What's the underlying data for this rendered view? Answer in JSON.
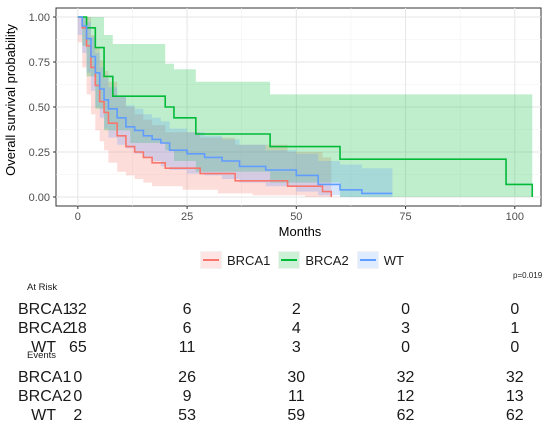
{
  "chart_data": {
    "type": "line",
    "ylabel": "Overall survival probability",
    "xlabel": "Months",
    "xlim": [
      -5,
      106
    ],
    "ylim": [
      -0.05,
      1.05
    ],
    "x_ticks": [
      0,
      25,
      50,
      75,
      100
    ],
    "y_ticks": [
      0.0,
      0.25,
      0.5,
      0.75,
      1.0
    ],
    "x_tick_labels": [
      "0",
      "25",
      "50",
      "75",
      "100"
    ],
    "y_tick_labels": [
      "0.00",
      "0.25",
      "0.50",
      "0.75",
      "1.00"
    ],
    "grid": true,
    "legend_position": "bottom",
    "series": [
      {
        "name": "BRCA1",
        "color": "#F8766D",
        "x": [
          0,
          1,
          2,
          3,
          4,
          5,
          6,
          7,
          9,
          11,
          13,
          15,
          17,
          20,
          24,
          28,
          32,
          36,
          40,
          48,
          52,
          56,
          58
        ],
        "y": [
          1.0,
          0.94,
          0.84,
          0.72,
          0.62,
          0.53,
          0.47,
          0.41,
          0.34,
          0.28,
          0.25,
          0.22,
          0.19,
          0.16,
          0.16,
          0.13,
          0.13,
          0.09,
          0.09,
          0.06,
          0.06,
          0.03,
          0.0
        ],
        "ci_lower": [
          1.0,
          0.86,
          0.72,
          0.57,
          0.46,
          0.37,
          0.31,
          0.26,
          0.19,
          0.14,
          0.12,
          0.1,
          0.08,
          0.06,
          0.06,
          0.04,
          0.04,
          0.02,
          0.02,
          0.01,
          0.01,
          0.0,
          0.0
        ],
        "ci_upper": [
          1.0,
          1.0,
          1.0,
          0.9,
          0.83,
          0.76,
          0.7,
          0.64,
          0.56,
          0.5,
          0.46,
          0.43,
          0.4,
          0.36,
          0.36,
          0.33,
          0.33,
          0.29,
          0.29,
          0.25,
          0.25,
          0.22,
          0.22
        ]
      },
      {
        "name": "BRCA2",
        "color": "#00BA38",
        "x": [
          0,
          1,
          2,
          4,
          6,
          8,
          12,
          20,
          22,
          27,
          44,
          60,
          98,
          104
        ],
        "y": [
          1.0,
          1.0,
          0.94,
          0.83,
          0.67,
          0.56,
          0.56,
          0.5,
          0.44,
          0.35,
          0.28,
          0.21,
          0.07,
          0.0
        ],
        "ci_lower": [
          1.0,
          1.0,
          0.84,
          0.67,
          0.49,
          0.37,
          0.37,
          0.3,
          0.26,
          0.2,
          0.14,
          0.08,
          0.0,
          0.0
        ],
        "ci_upper": [
          1.0,
          1.0,
          1.0,
          1.0,
          0.9,
          0.85,
          0.85,
          0.74,
          0.71,
          0.64,
          0.57,
          0.57,
          0.57,
          0.57
        ]
      },
      {
        "name": "WT",
        "color": "#619CFF",
        "x": [
          0,
          1,
          2,
          3,
          4,
          5,
          6,
          7,
          9,
          11,
          13,
          15,
          17,
          19,
          21,
          25,
          29,
          33,
          37,
          43,
          50,
          55,
          60,
          65,
          72
        ],
        "y": [
          1.0,
          0.95,
          0.88,
          0.78,
          0.69,
          0.6,
          0.54,
          0.49,
          0.44,
          0.39,
          0.37,
          0.34,
          0.32,
          0.3,
          0.26,
          0.24,
          0.22,
          0.2,
          0.17,
          0.15,
          0.12,
          0.07,
          0.04,
          0.02,
          0.02
        ],
        "ci_lower": [
          1.0,
          0.9,
          0.8,
          0.69,
          0.59,
          0.5,
          0.44,
          0.38,
          0.33,
          0.29,
          0.27,
          0.24,
          0.22,
          0.2,
          0.17,
          0.15,
          0.13,
          0.12,
          0.1,
          0.08,
          0.06,
          0.03,
          0.01,
          0.0,
          0.0
        ],
        "ci_upper": [
          1.0,
          1.0,
          0.97,
          0.89,
          0.8,
          0.72,
          0.66,
          0.61,
          0.56,
          0.51,
          0.49,
          0.46,
          0.44,
          0.42,
          0.38,
          0.36,
          0.34,
          0.32,
          0.29,
          0.26,
          0.24,
          0.2,
          0.18,
          0.16,
          0.16
        ]
      }
    ],
    "p_value": "p=0.019",
    "at_risk_title": "At Risk",
    "events_title": "Events",
    "table_time_points": [
      0,
      25,
      50,
      75,
      100
    ],
    "at_risk": [
      {
        "label": "BRCA1",
        "values": [
          "32",
          "6",
          "2",
          "0",
          "0"
        ]
      },
      {
        "label": "BRCA2",
        "values": [
          "18",
          "6",
          "4",
          "3",
          "1"
        ]
      },
      {
        "label": "WT",
        "values": [
          "65",
          "11",
          "3",
          "0",
          "0"
        ]
      }
    ],
    "events": [
      {
        "label": "BRCA1",
        "values": [
          "0",
          "26",
          "30",
          "32",
          "32"
        ]
      },
      {
        "label": "BRCA2",
        "values": [
          "0",
          "9",
          "11",
          "12",
          "13"
        ]
      },
      {
        "label": "WT",
        "values": [
          "2",
          "53",
          "59",
          "62",
          "62"
        ]
      }
    ]
  }
}
